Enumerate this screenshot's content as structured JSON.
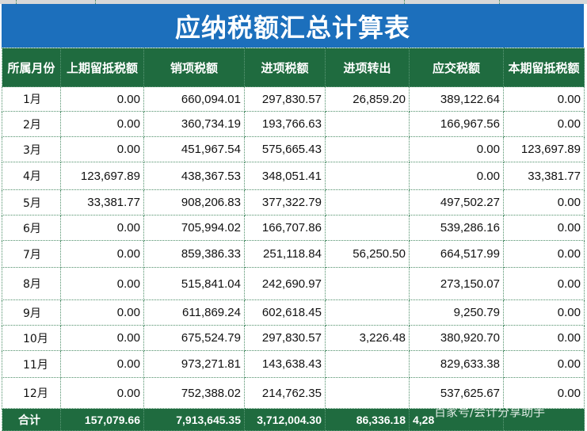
{
  "title": "应纳税额汇总计算表",
  "headers": [
    "所属月份",
    "上期留抵税额",
    "销项税额",
    "进项税额",
    "进项转出",
    "应交税额",
    "本期留抵税额"
  ],
  "rows": [
    {
      "month": "1月",
      "prev": "0.00",
      "output": "660,094.01",
      "input": "297,830.57",
      "transfer": "26,859.20",
      "payable": "389,122.64",
      "current": "0.00"
    },
    {
      "month": "2月",
      "prev": "0.00",
      "output": "360,734.19",
      "input": "193,766.63",
      "transfer": "",
      "payable": "166,967.56",
      "current": "0.00"
    },
    {
      "month": "3月",
      "prev": "0.00",
      "output": "451,967.54",
      "input": "575,665.43",
      "transfer": "",
      "payable": "0.00",
      "current": "123,697.89"
    },
    {
      "month": "4月",
      "prev": "123,697.89",
      "output": "438,367.53",
      "input": "348,051.41",
      "transfer": "",
      "payable": "0.00",
      "current": "33,381.77"
    },
    {
      "month": "5月",
      "prev": "33,381.77",
      "output": "908,206.83",
      "input": "377,322.79",
      "transfer": "",
      "payable": "497,502.27",
      "current": "0.00"
    },
    {
      "month": "6月",
      "prev": "0.00",
      "output": "705,994.02",
      "input": "166,707.86",
      "transfer": "",
      "payable": "539,286.16",
      "current": "0.00"
    },
    {
      "month": "7月",
      "prev": "0.00",
      "output": "859,386.33",
      "input": "251,118.84",
      "transfer": "56,250.50",
      "payable": "664,517.99",
      "current": "0.00"
    },
    {
      "month": "8月",
      "prev": "0.00",
      "output": "515,841.04",
      "input": "242,690.97",
      "transfer": "",
      "payable": "273,150.07",
      "current": "0.00"
    },
    {
      "month": "9月",
      "prev": "0.00",
      "output": "611,869.24",
      "input": "602,618.45",
      "transfer": "",
      "payable": "9,250.79",
      "current": "0.00"
    },
    {
      "month": "10月",
      "prev": "0.00",
      "output": "675,524.79",
      "input": "297,830.57",
      "transfer": "3,226.48",
      "payable": "380,920.70",
      "current": "0.00"
    },
    {
      "month": "11月",
      "prev": "0.00",
      "output": "973,271.81",
      "input": "143,638.43",
      "transfer": "",
      "payable": "829,633.38",
      "current": "0.00"
    },
    {
      "month": "12月",
      "prev": "0.00",
      "output": "752,388.02",
      "input": "214,762.35",
      "transfer": "",
      "payable": "537,625.67",
      "current": "0.00"
    }
  ],
  "totals": {
    "label": "合计",
    "prev": "157,079.66",
    "output": "7,913,645.35",
    "input": "3,712,004.30",
    "transfer": "86,336.18",
    "payable": "4,28",
    "current": ""
  },
  "watermark": "百家号/会计分享助手",
  "colors": {
    "title_bg": "#1c6fbc",
    "header_bg": "#1f6b3f",
    "grid_line": "#4f8f6a"
  }
}
